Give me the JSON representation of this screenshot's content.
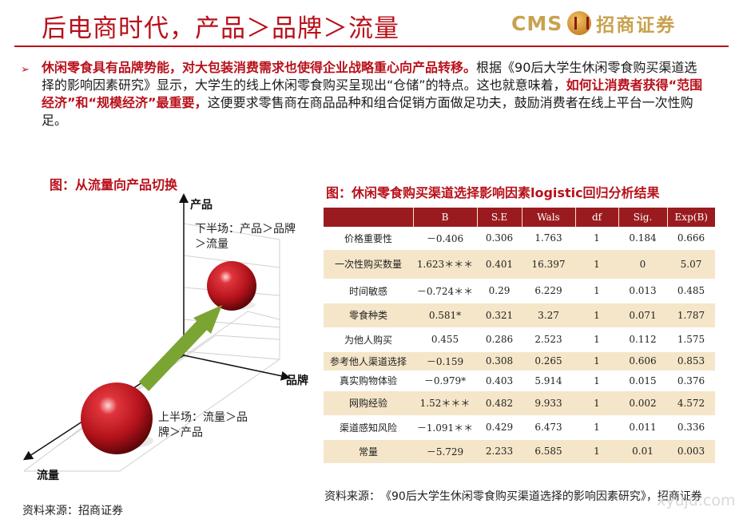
{
  "header": {
    "title": "后电商时代，产品＞品牌＞流量",
    "logo_latin": "CMS",
    "logo_cn": "招商证券"
  },
  "intro": {
    "bullet": "➢",
    "seg1": "休闲零食具有品牌势能，对大包装消费需求也使得企业战略重心向产品转移。",
    "seg2": "根据《90后大学生休闲零食购买渠道选择的影响因素研究》显示，大学生的线上休闲零食购买呈现出“仓储”的特点。这也就意味着，",
    "seg3": "如何让消费者获得“范围经济”和“规模经济”最重要，",
    "seg4": "这便要求零售商在商品品种和组合促销方面做足功夫，鼓励消费者在线上平台一次性购足。"
  },
  "left_figure": {
    "title": "图：从流量向产品切换",
    "axis_up": "产品",
    "axis_right": "品牌",
    "axis_down": "流量",
    "note_upper": "下半场：产品＞品牌＞流量",
    "note_lower": "上半场：流量＞品牌＞产品",
    "colors": {
      "sphere": "#b3121b",
      "arrow": "#7aa533"
    }
  },
  "right_figure": {
    "title": "图：休闲零食购买渠道选择影响因素logistic回归分析结果",
    "columns": [
      "",
      "B",
      "S.E",
      "Wals",
      "df",
      "Sig.",
      "Exp(B)"
    ],
    "rows": [
      [
        "价格重要性",
        "－0.406",
        "0.306",
        "1.763",
        "1",
        "0.184",
        "0.666"
      ],
      [
        "一次性购买数量",
        "1.623＊＊＊",
        "0.401",
        "16.397",
        "1",
        "0",
        "5.07"
      ],
      [
        "时间敏感",
        "－0.724＊＊",
        "0.29",
        "6.229",
        "1",
        "0.013",
        "0.485"
      ],
      [
        "零食种类",
        "0.581*",
        "0.321",
        "3.27",
        "1",
        "0.071",
        "1.787"
      ],
      [
        "为他人购买",
        "0.455",
        "0.286",
        "2.523",
        "1",
        "0.112",
        "1.575"
      ],
      [
        "参考他人渠道选择",
        "－0.159",
        "0.308",
        "0.265",
        "1",
        "0.606",
        "0.853"
      ],
      [
        "真实购物体验",
        "－0.979*",
        "0.403",
        "5.914",
        "1",
        "0.015",
        "0.376"
      ],
      [
        "网购经验",
        "1.52＊＊＊",
        "0.482",
        "9.933",
        "1",
        "0.002",
        "4.572"
      ],
      [
        "渠道感知风险",
        "－1.091＊＊",
        "0.429",
        "6.473",
        "1",
        "0.011",
        "0.336"
      ],
      [
        "常量",
        "－5.729",
        "2.233",
        "6.585",
        "1",
        "0.01",
        "0.003"
      ]
    ],
    "colors": {
      "header": "#9a1b1f",
      "band": "#f5e6c9"
    }
  },
  "sources": {
    "left": "资料来源：招商证券",
    "right": "资料来源：　《90后大学生休闲零食购买渠道选择的影响因素研究》，招商证券"
  },
  "watermark": "xyuju.com"
}
